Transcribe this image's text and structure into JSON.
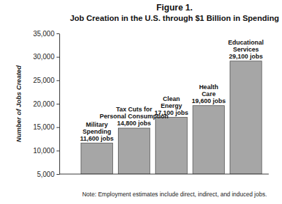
{
  "chart_data": {
    "type": "bar",
    "title": "Figure 1.",
    "subtitle": "Job Creation in the U.S. through $1 Billion in Spending",
    "y_label": "Number of Jobs Created",
    "annotation": "Note: Employment estimates include direct, indirect, and induced jobs.",
    "categories": [
      "Military Spending",
      "Tax Cuts for Personal Consumption",
      "Clean Energy",
      "Health Care",
      "Educational Services"
    ],
    "values": [
      11600,
      14800,
      17100,
      19600,
      29100
    ],
    "value_labels": [
      "11,600 jobs",
      "14,800 jobs",
      "17,100 jobs",
      "19,600 jobs",
      "29,100 jobs"
    ],
    "color": "#a6a6a6",
    "ylim": [
      5000,
      35000
    ],
    "yticks": [
      {
        "value": 5000,
        "label": "5,000"
      },
      {
        "value": 10000,
        "label": "10,000"
      },
      {
        "value": 15000,
        "label": "15,000"
      },
      {
        "value": 20000,
        "label": "20,000"
      },
      {
        "value": 25000,
        "label": "25,000"
      },
      {
        "value": 30000,
        "label": "30,000"
      },
      {
        "value": 35000,
        "label": "35,000"
      }
    ],
    "grid": false,
    "data_labels": true,
    "tick_labels": "y"
  }
}
